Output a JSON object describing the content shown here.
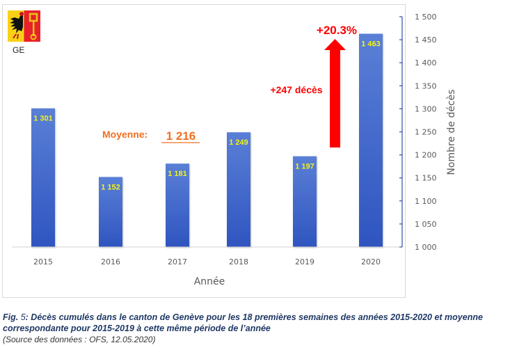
{
  "flag": {
    "label": "GE",
    "colors": {
      "left": "#f8d117",
      "right": "#e8212b"
    }
  },
  "chart_data": {
    "type": "bar",
    "categories": [
      "2015",
      "2016",
      "2017",
      "2018",
      "2019",
      "2020"
    ],
    "values": [
      1301,
      1152,
      1181,
      1249,
      1197,
      1463
    ],
    "value_labels": [
      "1 301",
      "1 152",
      "1 181",
      "1 249",
      "1 197",
      "1 463"
    ],
    "xlabel": "Année",
    "ylabel": "Nombre de décès",
    "ylim": [
      1000,
      1500
    ],
    "yticks": [
      1000,
      1050,
      1100,
      1150,
      1200,
      1250,
      1300,
      1350,
      1400,
      1450,
      1500
    ],
    "ytick_labels": [
      "1 000",
      "1 050",
      "1 100",
      "1 150",
      "1 200",
      "1 250",
      "1 300",
      "1 350",
      "1 400",
      "1 450",
      "1 500"
    ],
    "y_axis_position": "right",
    "grid": false,
    "bar_color": "#3a5fc8",
    "label_color": "#f2f21a",
    "average": {
      "label": "Moyenne:",
      "value": 1216,
      "value_label": "1 216",
      "range": [
        "2015",
        "2019"
      ],
      "color": "#f07020"
    },
    "annotation": {
      "increase_pct": "+20.3%",
      "increase_deaths": "+247 décès",
      "color": "#ff0000"
    }
  },
  "caption": {
    "fig_prefix": "Fig.",
    "fig_number": " 5",
    "text": ": Décès cumulés dans le canton de Genève pour les 18 premières semaines des années 2015-2020 et moyenne correspondante pour 2015-2019 à cette même période de l’année",
    "source": "(Source des données : OFS, 12.05.2020)"
  }
}
